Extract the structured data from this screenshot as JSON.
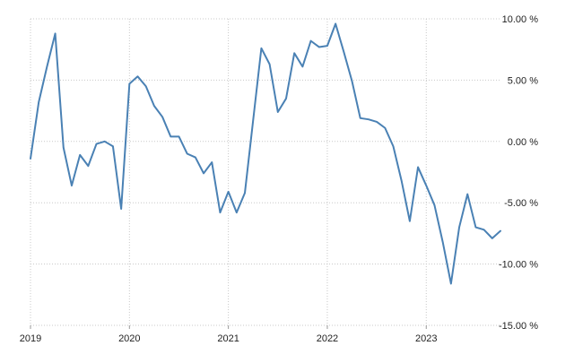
{
  "chart_data": {
    "type": "line",
    "title": "",
    "xlabel": "",
    "ylabel": "",
    "ylim": [
      -15,
      10
    ],
    "y_ticks": [
      10,
      5,
      0,
      -5,
      -10,
      -15
    ],
    "y_tick_labels": [
      "10.00 %",
      "5.00 %",
      "0.00 %",
      "-5.00 %",
      "-10.00 %",
      "-15.00 %"
    ],
    "x_tick_labels": [
      "2019",
      "2020",
      "2021",
      "2022",
      "2023"
    ],
    "x_range": [
      "2019-01",
      "2023-10"
    ],
    "grid": true,
    "line_color": "#4a81b4",
    "grid_color": "#c8c8c8",
    "series": [
      {
        "x": [
          "2019-01",
          "2019-02",
          "2019-03",
          "2019-04",
          "2019-05",
          "2019-06",
          "2019-07",
          "2019-08",
          "2019-09",
          "2019-10",
          "2019-11",
          "2019-12",
          "2020-01",
          "2020-02",
          "2020-03",
          "2020-04",
          "2020-05",
          "2020-06",
          "2020-07",
          "2020-08",
          "2020-09",
          "2020-10",
          "2020-11",
          "2020-12",
          "2021-01",
          "2021-02",
          "2021-03",
          "2021-04",
          "2021-05",
          "2021-06",
          "2021-07",
          "2021-08",
          "2021-09",
          "2021-10",
          "2021-11",
          "2021-12",
          "2022-01",
          "2022-02",
          "2022-03",
          "2022-04",
          "2022-05",
          "2022-06",
          "2022-07",
          "2022-08",
          "2022-09",
          "2022-10",
          "2022-11",
          "2022-12",
          "2023-01",
          "2023-02",
          "2023-03",
          "2023-04",
          "2023-05",
          "2023-06",
          "2023-07",
          "2023-08",
          "2023-09",
          "2023-10"
        ],
        "values": [
          -1.4,
          3.2,
          6.1,
          8.8,
          -0.5,
          -3.6,
          -1.1,
          -2.0,
          -0.2,
          0.0,
          -0.4,
          -5.5,
          4.7,
          5.3,
          4.5,
          2.9,
          2.0,
          0.4,
          0.4,
          -1.0,
          -1.3,
          -2.6,
          -1.7,
          -5.8,
          -4.1,
          -5.8,
          -4.2,
          1.7,
          7.6,
          6.3,
          2.4,
          3.5,
          7.2,
          6.1,
          8.2,
          7.7,
          7.8,
          9.6,
          7.3,
          4.9,
          1.9,
          1.8,
          1.6,
          1.1,
          -0.4,
          -3.2,
          -6.5,
          -2.1,
          -3.6,
          -5.2,
          -8.2,
          -11.6,
          -7.0,
          -4.3,
          -7.0,
          -7.2,
          -7.9,
          -7.3
        ]
      }
    ]
  }
}
